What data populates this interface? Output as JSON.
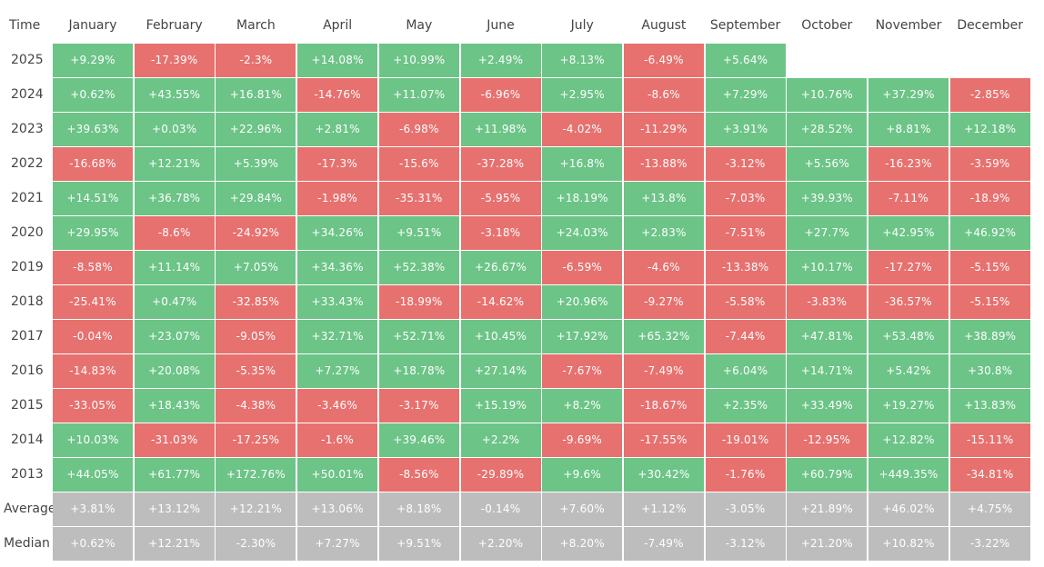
{
  "chart_data": {
    "type": "table",
    "corner_label": "Time",
    "columns": [
      "January",
      "February",
      "March",
      "April",
      "May",
      "June",
      "July",
      "August",
      "September",
      "October",
      "November",
      "December"
    ],
    "rows": [
      {
        "label": "2025",
        "values": [
          "+9.29%",
          "-17.39%",
          "-2.3%",
          "+14.08%",
          "+10.99%",
          "+2.49%",
          "+8.13%",
          "-6.49%",
          "+5.64%",
          null,
          null,
          null
        ]
      },
      {
        "label": "2024",
        "values": [
          "+0.62%",
          "+43.55%",
          "+16.81%",
          "-14.76%",
          "+11.07%",
          "-6.96%",
          "+2.95%",
          "-8.6%",
          "+7.29%",
          "+10.76%",
          "+37.29%",
          "-2.85%"
        ]
      },
      {
        "label": "2023",
        "values": [
          "+39.63%",
          "+0.03%",
          "+22.96%",
          "+2.81%",
          "-6.98%",
          "+11.98%",
          "-4.02%",
          "-11.29%",
          "+3.91%",
          "+28.52%",
          "+8.81%",
          "+12.18%"
        ]
      },
      {
        "label": "2022",
        "values": [
          "-16.68%",
          "+12.21%",
          "+5.39%",
          "-17.3%",
          "-15.6%",
          "-37.28%",
          "+16.8%",
          "-13.88%",
          "-3.12%",
          "+5.56%",
          "-16.23%",
          "-3.59%"
        ]
      },
      {
        "label": "2021",
        "values": [
          "+14.51%",
          "+36.78%",
          "+29.84%",
          "-1.98%",
          "-35.31%",
          "-5.95%",
          "+18.19%",
          "+13.8%",
          "-7.03%",
          "+39.93%",
          "-7.11%",
          "-18.9%"
        ]
      },
      {
        "label": "2020",
        "values": [
          "+29.95%",
          "-8.6%",
          "-24.92%",
          "+34.26%",
          "+9.51%",
          "-3.18%",
          "+24.03%",
          "+2.83%",
          "-7.51%",
          "+27.7%",
          "+42.95%",
          "+46.92%"
        ]
      },
      {
        "label": "2019",
        "values": [
          "-8.58%",
          "+11.14%",
          "+7.05%",
          "+34.36%",
          "+52.38%",
          "+26.67%",
          "-6.59%",
          "-4.6%",
          "-13.38%",
          "+10.17%",
          "-17.27%",
          "-5.15%"
        ]
      },
      {
        "label": "2018",
        "values": [
          "-25.41%",
          "+0.47%",
          "-32.85%",
          "+33.43%",
          "-18.99%",
          "-14.62%",
          "+20.96%",
          "-9.27%",
          "-5.58%",
          "-3.83%",
          "-36.57%",
          "-5.15%"
        ]
      },
      {
        "label": "2017",
        "values": [
          "-0.04%",
          "+23.07%",
          "-9.05%",
          "+32.71%",
          "+52.71%",
          "+10.45%",
          "+17.92%",
          "+65.32%",
          "-7.44%",
          "+47.81%",
          "+53.48%",
          "+38.89%"
        ]
      },
      {
        "label": "2016",
        "values": [
          "-14.83%",
          "+20.08%",
          "-5.35%",
          "+7.27%",
          "+18.78%",
          "+27.14%",
          "-7.67%",
          "-7.49%",
          "+6.04%",
          "+14.71%",
          "+5.42%",
          "+30.8%"
        ]
      },
      {
        "label": "2015",
        "values": [
          "-33.05%",
          "+18.43%",
          "-4.38%",
          "-3.46%",
          "-3.17%",
          "+15.19%",
          "+8.2%",
          "-18.67%",
          "+2.35%",
          "+33.49%",
          "+19.27%",
          "+13.83%"
        ]
      },
      {
        "label": "2014",
        "values": [
          "+10.03%",
          "-31.03%",
          "-17.25%",
          "-1.6%",
          "+39.46%",
          "+2.2%",
          "-9.69%",
          "-17.55%",
          "-19.01%",
          "-12.95%",
          "+12.82%",
          "-15.11%"
        ]
      },
      {
        "label": "2013",
        "values": [
          "+44.05%",
          "+61.77%",
          "+172.76%",
          "+50.01%",
          "-8.56%",
          "-29.89%",
          "+9.6%",
          "+30.42%",
          "-1.76%",
          "+60.79%",
          "+449.35%",
          "-34.81%"
        ]
      }
    ],
    "summary_rows": [
      {
        "label": "Average",
        "values": [
          "+3.81%",
          "+13.12%",
          "+12.21%",
          "+13.06%",
          "+8.18%",
          "-0.14%",
          "+7.60%",
          "+1.12%",
          "-3.05%",
          "+21.89%",
          "+46.02%",
          "+4.75%"
        ]
      },
      {
        "label": "Median",
        "values": [
          "+0.62%",
          "+12.21%",
          "-2.30%",
          "+7.27%",
          "+9.51%",
          "+2.20%",
          "+8.20%",
          "-7.49%",
          "-3.12%",
          "+21.20%",
          "+10.82%",
          "-3.22%"
        ]
      }
    ],
    "colors": {
      "positive": "#6cc487",
      "negative": "#e7716f",
      "summary": "#bdbdbd",
      "cell_text": "#ffffff",
      "label_text": "#444444"
    }
  }
}
